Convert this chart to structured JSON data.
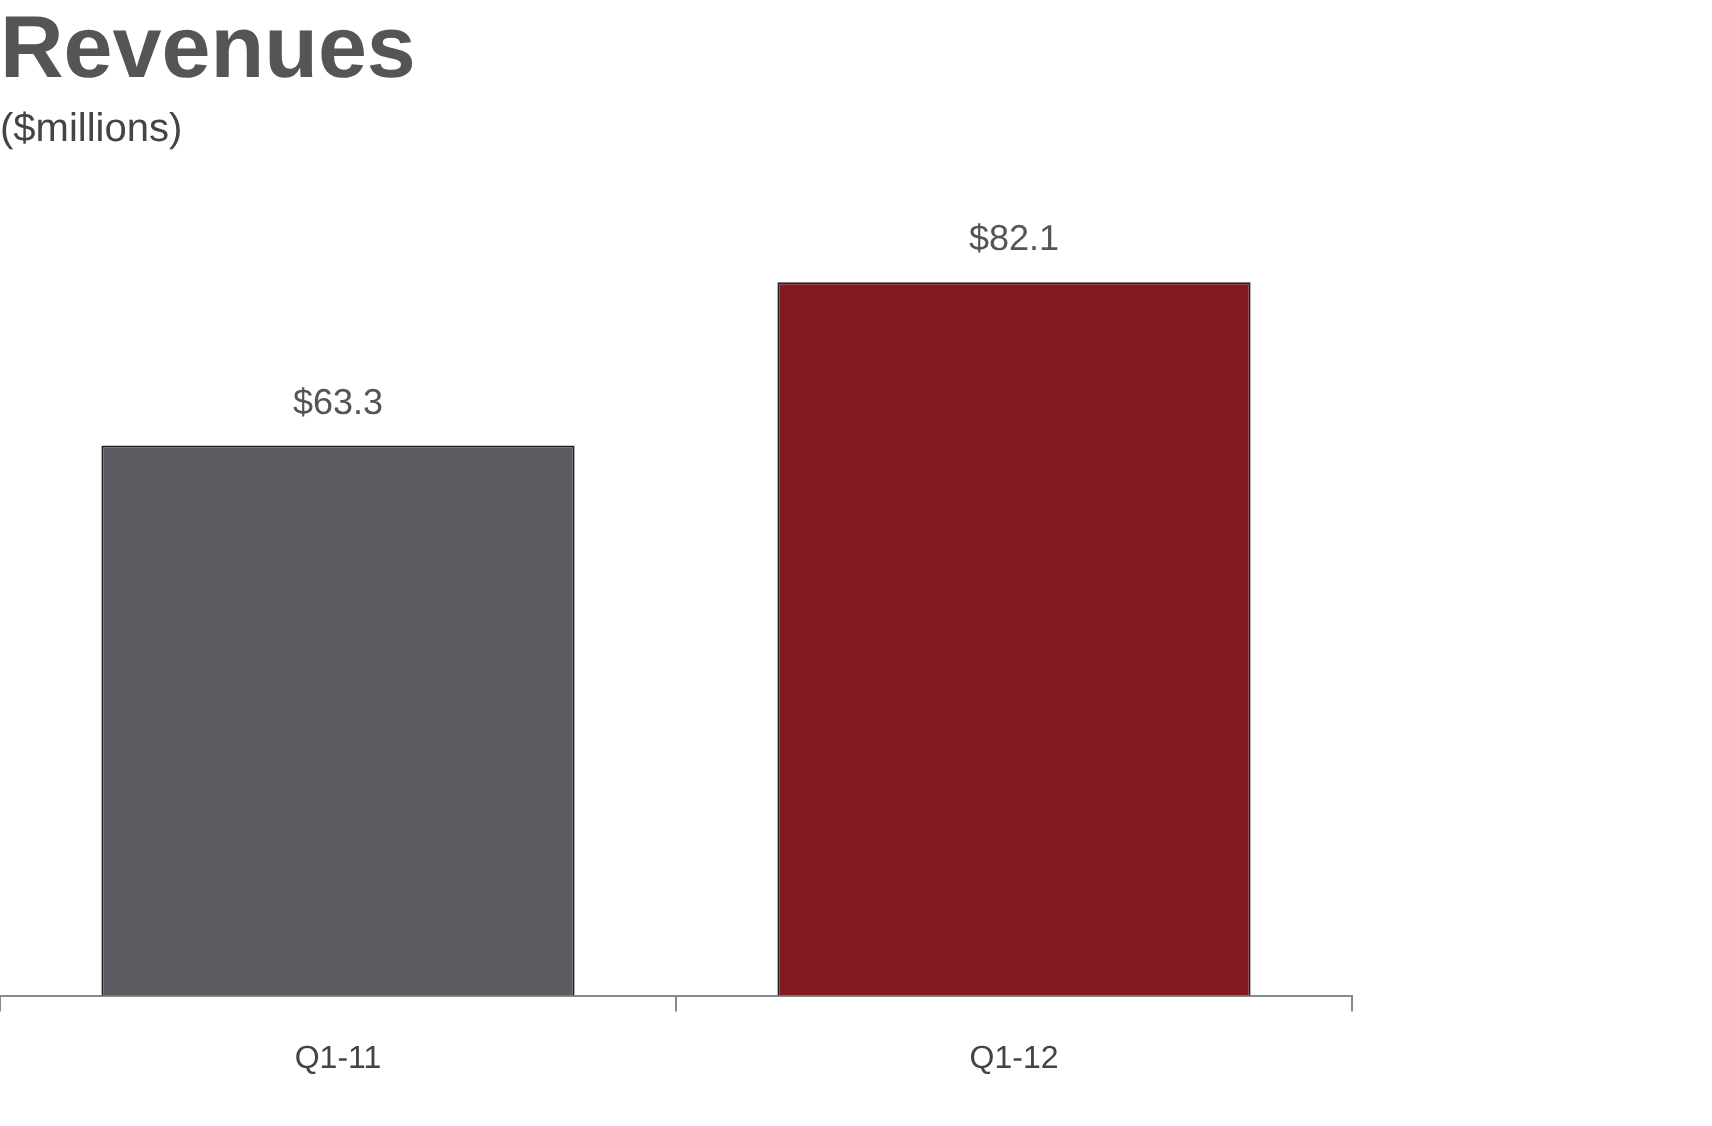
{
  "chart_data": {
    "type": "bar",
    "title": "Revenues",
    "subtitle": "($millions)",
    "categories": [
      "Q1-11",
      "Q1-12"
    ],
    "values": [
      63.3,
      82.1
    ],
    "colors": [
      "#5a5b60",
      "#821a20"
    ],
    "value_labels": [
      "$63.3",
      "$82.1"
    ],
    "grid": false,
    "legend": false
  }
}
